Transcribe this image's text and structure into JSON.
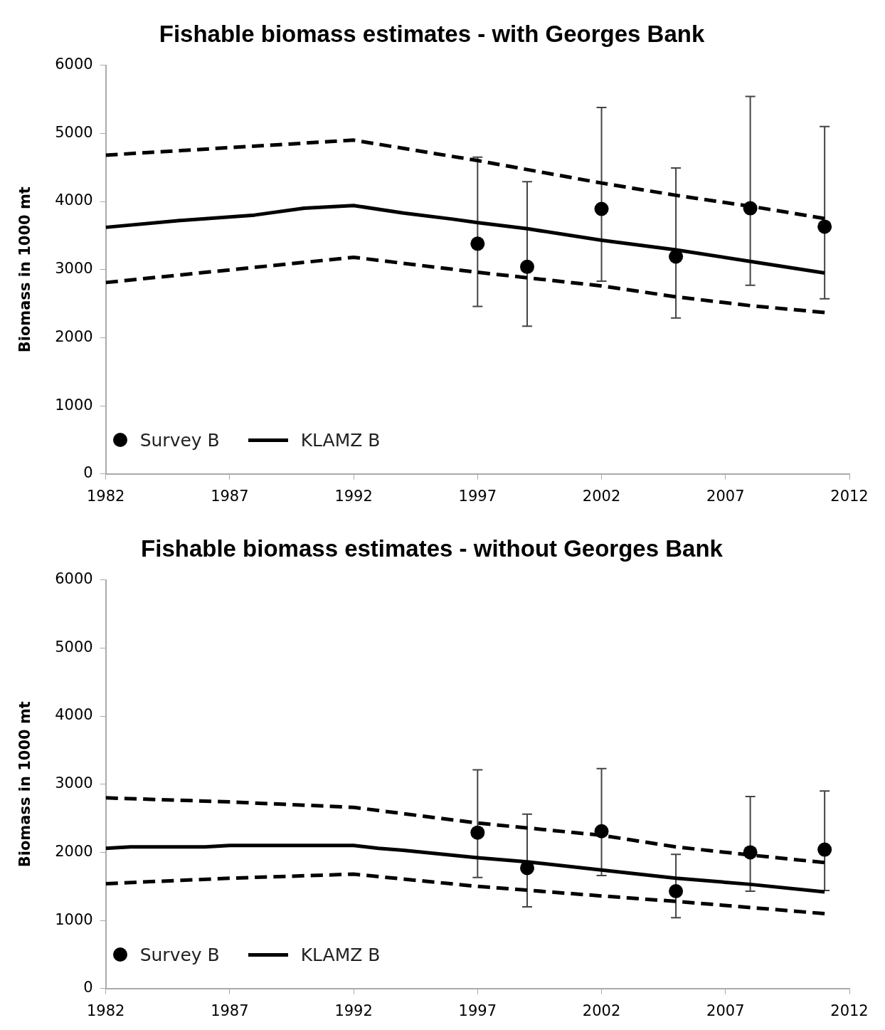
{
  "chart_data": [
    {
      "type": "line",
      "title": "Fishable biomass estimates - with Georges Bank",
      "ylabel": "Biomass in 1000 mt",
      "xlim": [
        1982,
        2012
      ],
      "xticks": [
        1982,
        1987,
        1992,
        1997,
        2002,
        2007,
        2012
      ],
      "ylim": [
        0,
        6000
      ],
      "yticks": [
        0,
        1000,
        2000,
        3000,
        4000,
        5000,
        6000
      ],
      "grid": false,
      "legend": "bottom left",
      "series": [
        {
          "name": "Survey B",
          "type": "scatter",
          "marker": "circle",
          "color": "#000000",
          "x": [
            1997,
            1999,
            2002,
            2005,
            2008,
            2011
          ],
          "values": [
            3380,
            3040,
            3890,
            3190,
            3900,
            3630
          ],
          "errors": [
            [
              2460,
              4650
            ],
            [
              2170,
              4290
            ],
            [
              2830,
              5380
            ],
            [
              2290,
              4490
            ],
            [
              2770,
              5540
            ],
            [
              2570,
              5100
            ]
          ]
        },
        {
          "name": "KLAMZ B",
          "type": "line",
          "marker": "none",
          "line_style": "solid",
          "color": "#000000",
          "x": [
            1982,
            1985,
            1988,
            1990,
            1992,
            1994,
            1996,
            1997,
            1999,
            2002,
            2005,
            2008,
            2011
          ],
          "values": [
            3620,
            3720,
            3800,
            3900,
            3940,
            3830,
            3740,
            3690,
            3600,
            3430,
            3290,
            3120,
            2950
          ]
        },
        {
          "type": "line",
          "marker": "none",
          "line_style": "dashed",
          "color": "#000000",
          "x": [
            1982,
            1992,
            1997,
            2002,
            2005,
            2008,
            2011
          ],
          "values": [
            4680,
            4900,
            4600,
            4270,
            4090,
            3930,
            3750
          ]
        },
        {
          "type": "line",
          "marker": "none",
          "line_style": "dashed",
          "color": "#000000",
          "x": [
            1982,
            1992,
            1997,
            2002,
            2005,
            2008,
            2011
          ],
          "values": [
            2810,
            3180,
            2960,
            2760,
            2600,
            2470,
            2370
          ]
        }
      ]
    },
    {
      "type": "line",
      "title": "Fishable biomass estimates - without Georges Bank",
      "ylabel": "Biomass in 1000 mt",
      "xlim": [
        1982,
        2012
      ],
      "xticks": [
        1982,
        1987,
        1992,
        1997,
        2002,
        2007,
        2012
      ],
      "ylim": [
        0,
        6000
      ],
      "yticks": [
        0,
        1000,
        2000,
        3000,
        4000,
        5000,
        6000
      ],
      "grid": false,
      "legend": "bottom left",
      "series": [
        {
          "name": "Survey B",
          "type": "scatter",
          "marker": "circle",
          "color": "#000000",
          "x": [
            1997,
            1999,
            2002,
            2005,
            2008,
            2011
          ],
          "values": [
            2290,
            1770,
            2310,
            1430,
            2000,
            2040
          ],
          "errors": [
            [
              1630,
              3210
            ],
            [
              1200,
              2560
            ],
            [
              1660,
              3230
            ],
            [
              1040,
              1970
            ],
            [
              1430,
              2820
            ],
            [
              1440,
              2900
            ]
          ]
        },
        {
          "name": "KLAMZ B",
          "type": "line",
          "marker": "none",
          "line_style": "solid",
          "color": "#000000",
          "x": [
            1982,
            1983,
            1986,
            1987,
            1992,
            1993,
            1994,
            1997,
            1999,
            2002,
            2005,
            2008,
            2011
          ],
          "values": [
            2060,
            2080,
            2080,
            2100,
            2100,
            2060,
            2030,
            1920,
            1860,
            1740,
            1620,
            1530,
            1420
          ]
        },
        {
          "type": "line",
          "marker": "none",
          "line_style": "dashed",
          "color": "#000000",
          "x": [
            1982,
            1987,
            1992,
            1997,
            2002,
            2005,
            2008,
            2011
          ],
          "values": [
            2800,
            2740,
            2660,
            2430,
            2250,
            2080,
            1960,
            1850
          ]
        },
        {
          "type": "line",
          "marker": "none",
          "line_style": "dashed",
          "color": "#000000",
          "x": [
            1982,
            1987,
            1992,
            1997,
            2002,
            2005,
            2008,
            2011
          ],
          "values": [
            1540,
            1620,
            1680,
            1500,
            1360,
            1280,
            1190,
            1100
          ]
        }
      ]
    }
  ]
}
